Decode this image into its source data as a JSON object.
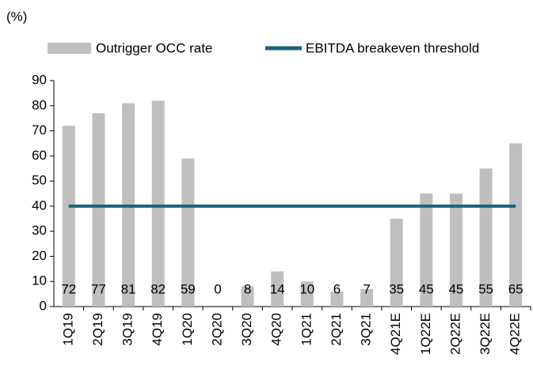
{
  "chart_data": {
    "type": "bar",
    "y_label": "(%)",
    "categories": [
      "1Q19",
      "2Q19",
      "3Q19",
      "4Q19",
      "1Q20",
      "2Q20",
      "3Q20",
      "4Q20",
      "1Q21",
      "2Q21",
      "3Q21",
      "4Q21E",
      "1Q22E",
      "2Q22E",
      "3Q22E",
      "4Q22E"
    ],
    "series": [
      {
        "name": "Outrigger OCC rate",
        "type": "bar",
        "color": "#bfbfbf",
        "values": [
          72,
          77,
          81,
          82,
          59,
          0,
          8,
          14,
          10,
          6,
          7,
          35,
          45,
          45,
          55,
          65
        ]
      },
      {
        "name": "EBITDA breakeven threshold",
        "type": "line",
        "color": "#17657d",
        "values": [
          40,
          40,
          40,
          40,
          40,
          40,
          40,
          40,
          40,
          40,
          40,
          40,
          40,
          40,
          40,
          40
        ]
      }
    ],
    "ylim": [
      0,
      90
    ],
    "yticks": [
      0,
      10,
      20,
      30,
      40,
      50,
      60,
      70,
      80,
      90
    ],
    "grid": false
  }
}
